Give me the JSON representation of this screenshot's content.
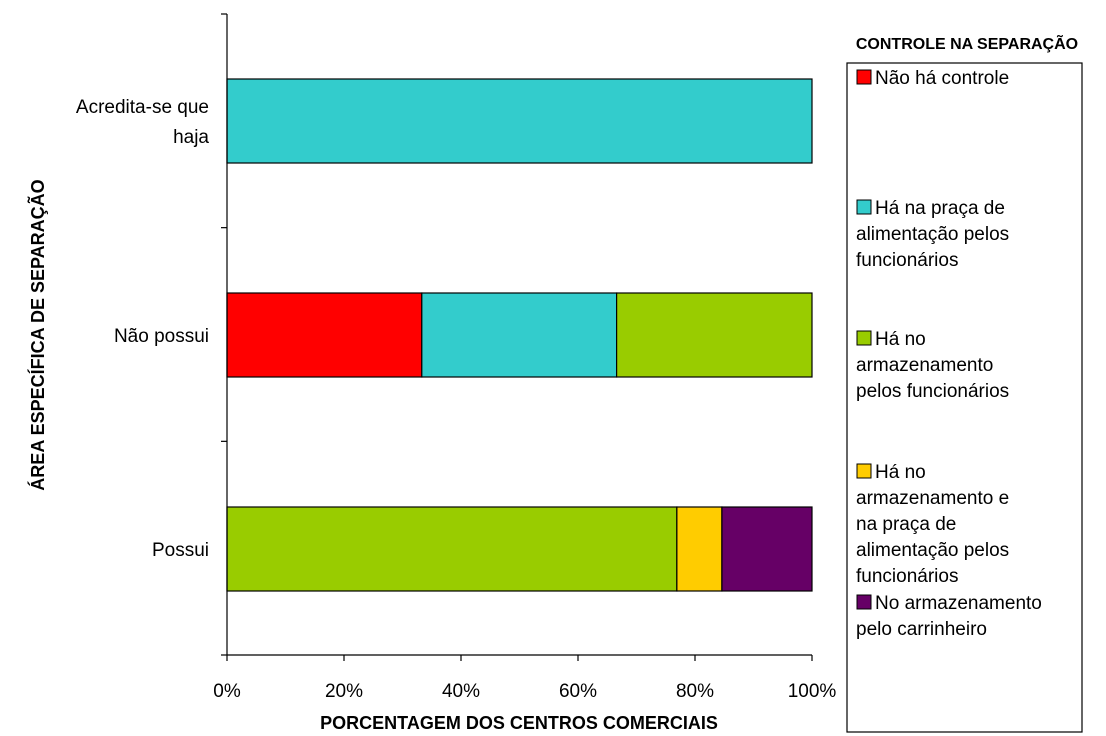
{
  "chart_data": {
    "type": "bar",
    "orientation": "horizontal",
    "stacked": true,
    "xlabel": "PORCENTAGEM DOS CENTROS COMERCIAIS",
    "ylabel": "ÁREA ESPECÍFICA DE SEPARAÇÃO",
    "xlim": [
      0,
      100
    ],
    "x_ticks": [
      "0%",
      "20%",
      "40%",
      "60%",
      "80%",
      "100%"
    ],
    "x_tick_values": [
      0,
      20,
      40,
      60,
      80,
      100
    ],
    "categories": [
      [
        "Possui"
      ],
      [
        "Não possui"
      ],
      [
        "Acredita-se que",
        "haja"
      ]
    ],
    "legend_title": "CONTROLE NA SEPARAÇÃO",
    "legend_position": "right",
    "grid": false,
    "series": [
      {
        "name": "Não há controle",
        "label_lines": [
          "Não há controle"
        ],
        "color": "#ff0000",
        "values": [
          0,
          33.3,
          0
        ]
      },
      {
        "name": "Há na praça de alimentação pelos funcionários",
        "label_lines": [
          "Há na praça de",
          "alimentação pelos",
          "funcionários"
        ],
        "color": "#33cccc",
        "values": [
          0,
          33.3,
          100
        ]
      },
      {
        "name": "Há no armazenamento pelos funcionários",
        "label_lines": [
          "Há no",
          "armazenamento",
          "pelos funcionários"
        ],
        "color": "#99cc00",
        "values": [
          76.9,
          33.4,
          0
        ]
      },
      {
        "name": "Há no armazenamento e na praça de alimentação pelos funcionários",
        "label_lines": [
          "Há no",
          "armazenamento e",
          "na praça de",
          "alimentação pelos",
          "funcionários"
        ],
        "color": "#ffcc00",
        "values": [
          7.7,
          0,
          0
        ]
      },
      {
        "name": "No armazenamento pelo carrinheiro",
        "label_lines": [
          "No armazenamento",
          "pelo carrinheiro"
        ],
        "color": "#660066",
        "values": [
          15.4,
          0,
          0
        ]
      }
    ]
  }
}
